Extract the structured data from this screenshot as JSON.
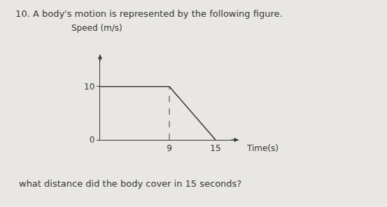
{
  "chart_data": {
    "type": "line",
    "title": "10. A body's motion is represented by the following figure.",
    "annotations": [
      "what distance did the body cover in 15 seconds?"
    ],
    "xlabel": "Time(s)",
    "ylabel": "Speed (m/s)",
    "x": [
      0,
      9,
      15
    ],
    "values": [
      10,
      10,
      0
    ],
    "color": "#3a3a3a",
    "xlim": [
      0,
      18
    ],
    "ylim": [
      0,
      16
    ],
    "xticks": [
      9,
      15
    ],
    "yticks": [
      0,
      10
    ],
    "grid": false
  }
}
